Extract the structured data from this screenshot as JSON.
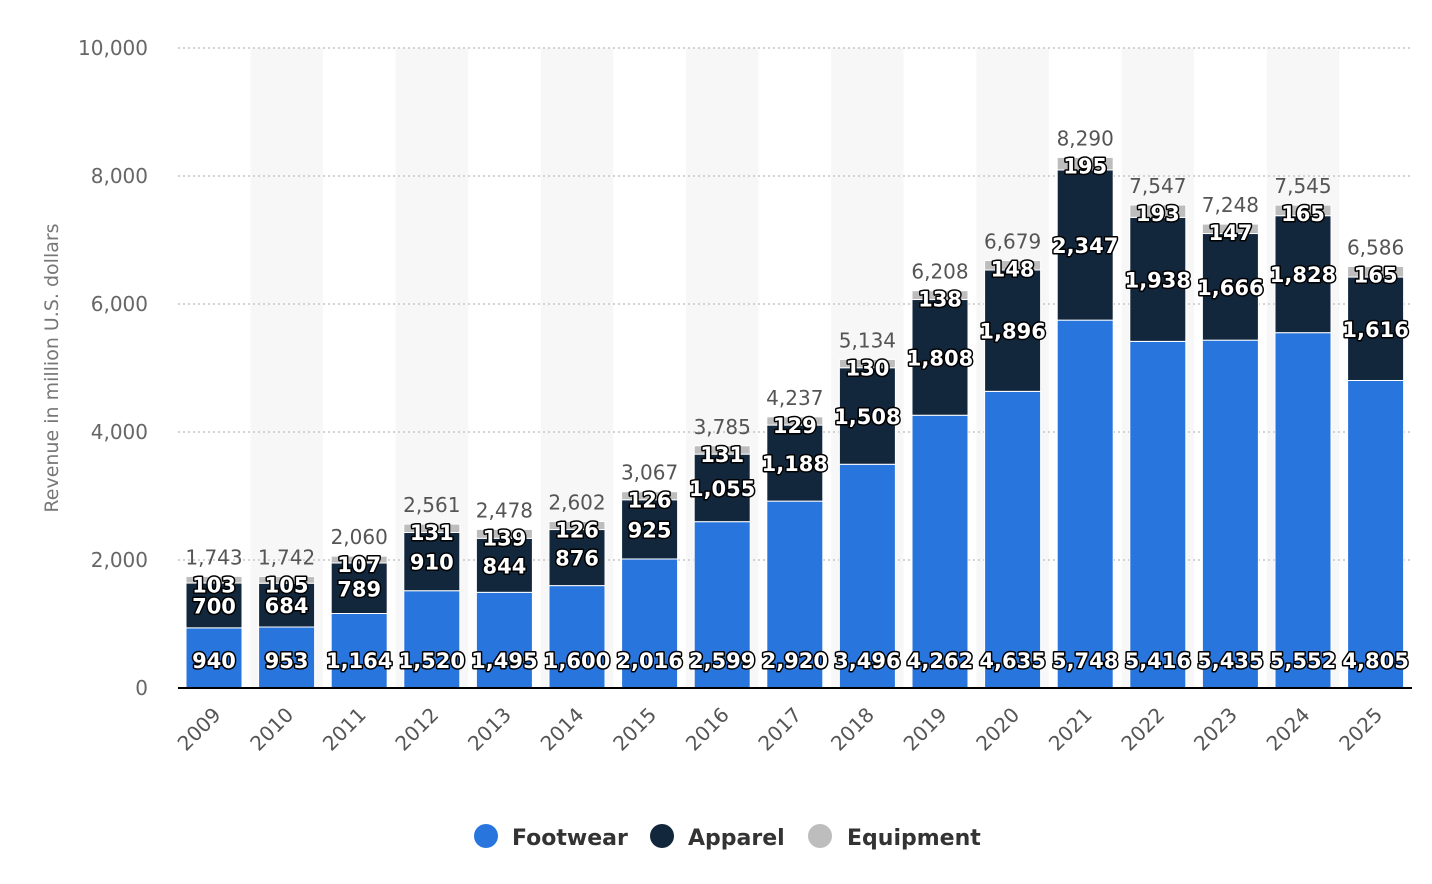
{
  "chart_data": {
    "type": "bar",
    "stacked": true,
    "title": "",
    "xlabel": "",
    "ylabel": "Revenue in million U.S. dollars",
    "ylim": [
      0,
      10000
    ],
    "yticks": [
      0,
      2000,
      4000,
      6000,
      8000,
      10000
    ],
    "ytick_labels": [
      "0",
      "2,000",
      "4,000",
      "6,000",
      "8,000",
      "10,000"
    ],
    "categories": [
      "2009",
      "2010",
      "2011",
      "2012",
      "2013",
      "2014",
      "2015",
      "2016",
      "2017",
      "2018",
      "2019",
      "2020",
      "2021",
      "2022",
      "2023",
      "2024",
      "2025"
    ],
    "series": [
      {
        "name": "Footwear",
        "color": "#2876DD",
        "values": [
          940,
          953,
          1164,
          1520,
          1495,
          1600,
          2016,
          2599,
          2920,
          3496,
          4262,
          4635,
          5748,
          5416,
          5435,
          5552,
          4805
        ],
        "labels": [
          "940",
          "953",
          "1,164",
          "1,520",
          "1,495",
          "1,600",
          "2,016",
          "2,599",
          "2,920",
          "3,496",
          "4,262",
          "4,635",
          "5,748",
          "5,416",
          "5,435",
          "5,552",
          "4,805"
        ]
      },
      {
        "name": "Apparel",
        "color": "#12263C",
        "values": [
          700,
          684,
          789,
          910,
          844,
          876,
          925,
          1055,
          1188,
          1508,
          1808,
          1896,
          2347,
          1938,
          1666,
          1828,
          1616
        ],
        "labels": [
          "700",
          "684",
          "789",
          "910",
          "844",
          "876",
          "925",
          "1,055",
          "1,188",
          "1,508",
          "1,808",
          "1,896",
          "2,347",
          "1,938",
          "1,666",
          "1,828",
          "1,616"
        ]
      },
      {
        "name": "Equipment",
        "color": "#BDBDBD",
        "values": [
          103,
          105,
          107,
          131,
          139,
          126,
          126,
          131,
          129,
          130,
          138,
          148,
          195,
          193,
          147,
          165,
          165
        ],
        "labels": [
          "103",
          "105",
          "107",
          "131",
          "139",
          "126",
          "126",
          "131",
          "129",
          "130",
          "138",
          "148",
          "195",
          "193",
          "147",
          "165",
          "165"
        ]
      }
    ],
    "totals": [
      1743,
      1742,
      2060,
      2561,
      2478,
      2602,
      3067,
      3785,
      4237,
      5134,
      6208,
      6679,
      8290,
      7547,
      7248,
      7545,
      6586
    ],
    "total_labels": [
      "1,743",
      "1,742",
      "2,060",
      "2,561",
      "2,478",
      "2,602",
      "3,067",
      "3,785",
      "4,237",
      "5,134",
      "6,208",
      "6,679",
      "8,290",
      "7,547",
      "7,248",
      "7,545",
      "6,586"
    ],
    "legend": {
      "position": "bottom-center",
      "items": [
        "Footwear",
        "Apparel",
        "Equipment"
      ]
    },
    "grid": true
  }
}
